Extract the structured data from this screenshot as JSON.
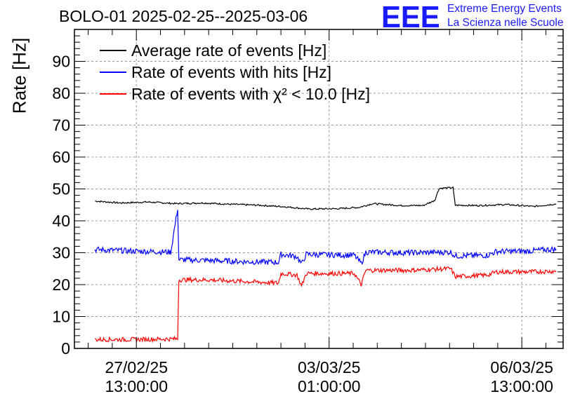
{
  "header": {
    "title": "BOLO-01 2025-02-25--2025-03-06",
    "logo": "EEE",
    "logo_line1": "Extreme Energy Events",
    "logo_line2": "La Scienza nelle Scuole"
  },
  "chart_data": {
    "type": "line",
    "title": "BOLO-01 2025-02-25--2025-03-06",
    "ylabel": "Rate [Hz]",
    "xlabel": "",
    "ylim": [
      0,
      100
    ],
    "grid": true,
    "legend_position": "top-left",
    "y_ticks": [
      0,
      10,
      20,
      30,
      40,
      50,
      60,
      70,
      80,
      90
    ],
    "x_ticks": [
      {
        "line1": "27/02/25",
        "line2": "13:00:00",
        "value": "2025-02-27 13:00:00"
      },
      {
        "line1": "03/03/25",
        "line2": "01:00:00",
        "value": "2025-03-03 01:00:00"
      },
      {
        "line1": "06/03/25",
        "line2": "13:00:00",
        "value": "2025-03-06 13:00:00"
      }
    ],
    "xlim": [
      "2025-02-26 10:00:00",
      "2025-03-07 07:00:00"
    ],
    "series": [
      {
        "name": "Average rate of events [Hz]",
        "color": "#000000",
        "points": [
          [
            "2025-02-26 19:00:00",
            46.2
          ],
          [
            "2025-02-27 06:00:00",
            45.6
          ],
          [
            "2025-02-27 18:00:00",
            45.9
          ],
          [
            "2025-02-28 06:00:00",
            45.4
          ],
          [
            "2025-02-28 18:00:00",
            45.6
          ],
          [
            "2025-03-01 06:00:00",
            45.2
          ],
          [
            "2025-03-01 18:00:00",
            44.9
          ],
          [
            "2025-03-02 06:00:00",
            44.4
          ],
          [
            "2025-03-02 16:00:00",
            43.7
          ],
          [
            "2025-03-03 04:00:00",
            43.8
          ],
          [
            "2025-03-03 14:00:00",
            44.2
          ],
          [
            "2025-03-03 20:00:00",
            45.4
          ],
          [
            "2025-03-04 08:00:00",
            44.8
          ],
          [
            "2025-03-04 18:00:00",
            44.8
          ],
          [
            "2025-03-04 23:00:00",
            46.4
          ],
          [
            "2025-03-05 01:00:00",
            50.2
          ],
          [
            "2025-03-05 07:00:00",
            50.4
          ],
          [
            "2025-03-05 08:00:00",
            44.9
          ],
          [
            "2025-03-05 18:00:00",
            44.8
          ],
          [
            "2025-03-06 06:00:00",
            45.1
          ],
          [
            "2025-03-06 18:00:00",
            44.5
          ],
          [
            "2025-03-07 04:00:00",
            45.3
          ]
        ]
      },
      {
        "name": "Rate of events with hits [Hz]",
        "color": "#0000ff",
        "points": [
          [
            "2025-02-26 19:00:00",
            31.0
          ],
          [
            "2025-02-27 12:00:00",
            30.5
          ],
          [
            "2025-02-28 04:00:00",
            30.2
          ],
          [
            "2025-02-28 07:00:00",
            44.0
          ],
          [
            "2025-02-28 07:30:00",
            27.8
          ],
          [
            "2025-02-28 20:00:00",
            27.6
          ],
          [
            "2025-03-01 12:00:00",
            27.2
          ],
          [
            "2025-03-02 03:00:00",
            27.0
          ],
          [
            "2025-03-02 04:00:00",
            29.5
          ],
          [
            "2025-03-02 11:00:00",
            28.8
          ],
          [
            "2025-03-02 13:00:00",
            26.4
          ],
          [
            "2025-03-02 15:00:00",
            29.5
          ],
          [
            "2025-03-03 12:00:00",
            29.2
          ],
          [
            "2025-03-03 15:00:00",
            26.6
          ],
          [
            "2025-03-03 17:00:00",
            30.2
          ],
          [
            "2025-03-04 12:00:00",
            30.0
          ],
          [
            "2025-03-05 06:00:00",
            30.2
          ],
          [
            "2025-03-05 08:00:00",
            29.0
          ],
          [
            "2025-03-05 22:00:00",
            29.2
          ],
          [
            "2025-03-06 02:00:00",
            30.4
          ],
          [
            "2025-03-06 16:00:00",
            30.5
          ],
          [
            "2025-03-07 04:00:00",
            31.2
          ]
        ]
      },
      {
        "name": "Rate of events with χ² < 10.0 [Hz]",
        "color": "#ff0000",
        "points": [
          [
            "2025-02-26 19:00:00",
            2.8
          ],
          [
            "2025-02-27 12:00:00",
            2.8
          ],
          [
            "2025-02-28 07:00:00",
            3.0
          ],
          [
            "2025-02-28 07:30:00",
            21.5
          ],
          [
            "2025-02-28 20:00:00",
            21.5
          ],
          [
            "2025-03-01 12:00:00",
            21.0
          ],
          [
            "2025-03-02 03:00:00",
            20.5
          ],
          [
            "2025-03-02 04:00:00",
            23.5
          ],
          [
            "2025-03-02 11:00:00",
            23.0
          ],
          [
            "2025-03-02 13:00:00",
            19.5
          ],
          [
            "2025-03-02 15:00:00",
            23.5
          ],
          [
            "2025-03-03 12:00:00",
            23.5
          ],
          [
            "2025-03-03 15:00:00",
            20.0
          ],
          [
            "2025-03-03 17:00:00",
            24.5
          ],
          [
            "2025-03-04 12:00:00",
            24.5
          ],
          [
            "2025-03-05 06:00:00",
            25.0
          ],
          [
            "2025-03-05 08:00:00",
            22.5
          ],
          [
            "2025-03-05 22:00:00",
            23.0
          ],
          [
            "2025-03-06 02:00:00",
            24.0
          ],
          [
            "2025-03-06 16:00:00",
            24.0
          ],
          [
            "2025-03-07 04:00:00",
            24.2
          ]
        ]
      }
    ]
  }
}
